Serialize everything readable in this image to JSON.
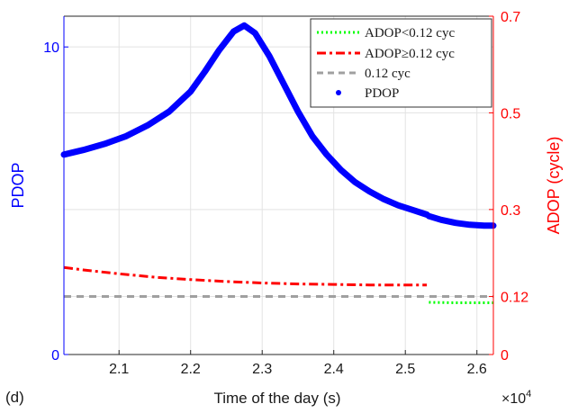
{
  "panel_label": "(d)",
  "chart_data": {
    "type": "line",
    "xlabel": "Time of the day (s)",
    "x_exponent_label": "×10",
    "x_exponent_power": "4",
    "x_scale_factor": 10000,
    "xlim": [
      20230,
      26230
    ],
    "x_ticks": [
      21000,
      22000,
      23000,
      24000,
      25000,
      26000
    ],
    "x_tick_labels": [
      "2.1",
      "2.2",
      "2.3",
      "2.4",
      "2.5",
      "2.6"
    ],
    "grid": true,
    "y_left": {
      "label": "PDOP",
      "lim": [
        0,
        11
      ],
      "ticks": [
        0,
        10
      ],
      "tick_labels": [
        "0",
        "10"
      ],
      "color": "#0000ff"
    },
    "y_right": {
      "label": "ADOP (cycle)",
      "lim": [
        0,
        0.7
      ],
      "ticks": [
        0,
        0.12,
        0.3,
        0.5,
        0.7
      ],
      "tick_labels": [
        "0",
        "0.12",
        "0.3",
        "0.5",
        "0.7"
      ],
      "color": "#ff0000"
    },
    "legend_position": "top-right",
    "legend": [
      {
        "label": "ADOP<0.12 cyc",
        "color": "#00ff00",
        "style": "dotted"
      },
      {
        "label": "ADOP≥0.12 cyc",
        "color": "#ff0000",
        "style": "dashdot"
      },
      {
        "label": "0.12 cyc",
        "color": "#a0a0a0",
        "style": "dashed"
      },
      {
        "label": "PDOP",
        "color": "#0000ff",
        "style": "marker"
      }
    ],
    "series": [
      {
        "name": "PDOP",
        "axis": "left",
        "color": "#0000ff",
        "style": "marker",
        "x": [
          20230,
          20500,
          20800,
          21100,
          21400,
          21700,
          22000,
          22200,
          22400,
          22600,
          22750,
          22900,
          23100,
          23300,
          23500,
          23700,
          23900,
          24100,
          24300,
          24500,
          24700,
          24900,
          25100,
          25300
        ],
        "y": [
          6.5,
          6.65,
          6.85,
          7.1,
          7.45,
          7.9,
          8.55,
          9.2,
          9.9,
          10.5,
          10.7,
          10.45,
          9.7,
          8.8,
          7.9,
          7.1,
          6.5,
          6.0,
          5.6,
          5.3,
          5.05,
          4.85,
          4.7,
          4.55
        ]
      },
      {
        "name": "PDOP",
        "axis": "left",
        "color": "#0000ff",
        "style": "marker",
        "x": [
          25330,
          25500,
          25700,
          25900,
          26100,
          26230
        ],
        "y": [
          4.5,
          4.38,
          4.28,
          4.22,
          4.19,
          4.19
        ]
      },
      {
        "name": "ADOP≥0.12 cyc",
        "axis": "right",
        "color": "#ff0000",
        "style": "dashdot",
        "x": [
          20230,
          20500,
          21000,
          21500,
          22000,
          22500,
          23000,
          23500,
          24000,
          24500,
          25000,
          25300
        ],
        "y": [
          0.18,
          0.175,
          0.167,
          0.16,
          0.155,
          0.151,
          0.148,
          0.146,
          0.145,
          0.144,
          0.144,
          0.144
        ]
      },
      {
        "name": "0.12 cyc",
        "axis": "right",
        "color": "#a0a0a0",
        "style": "dashed",
        "x": [
          20230,
          26230
        ],
        "y": [
          0.12,
          0.12
        ]
      },
      {
        "name": "ADOP<0.12 cyc",
        "axis": "right",
        "color": "#00ff00",
        "style": "dotted",
        "x": [
          25330,
          25700,
          26230
        ],
        "y": [
          0.108,
          0.107,
          0.107
        ]
      }
    ]
  }
}
